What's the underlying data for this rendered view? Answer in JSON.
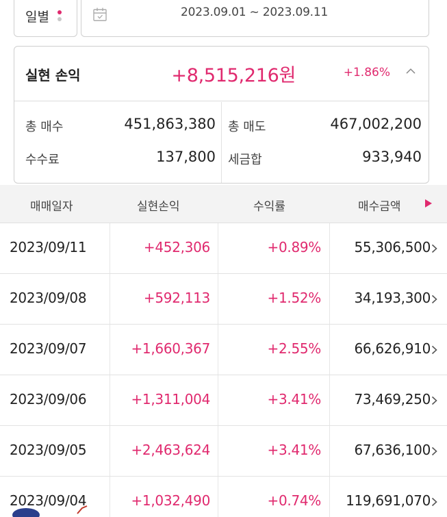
{
  "filter": {
    "period_label": "일별",
    "date_range": "2023.09.01 ~ 2023.09.11"
  },
  "summary": {
    "title": "실현 손익",
    "amount": "+8,515,216원",
    "rate": "+1.86%",
    "total_buy_label": "총 매수",
    "total_buy_value": "451,863,380",
    "total_sell_label": "총 매도",
    "total_sell_value": "467,002,200",
    "fee_label": "수수료",
    "fee_value": "137,800",
    "tax_label": "세금합",
    "tax_value": "933,940"
  },
  "table": {
    "headers": [
      "매매일자",
      "실현손익",
      "수익률",
      "매수금액"
    ],
    "rows": [
      {
        "date": "2023/09/11",
        "pnl": "+452,306",
        "rate": "+0.89%",
        "buy": "55,306,500"
      },
      {
        "date": "2023/09/08",
        "pnl": "+592,113",
        "rate": "+1.52%",
        "buy": "34,193,300"
      },
      {
        "date": "2023/09/07",
        "pnl": "+1,660,367",
        "rate": "+2.55%",
        "buy": "66,626,910"
      },
      {
        "date": "2023/09/06",
        "pnl": "+1,311,004",
        "rate": "+3.41%",
        "buy": "73,469,250"
      },
      {
        "date": "2023/09/05",
        "pnl": "+2,463,624",
        "rate": "+3.41%",
        "buy": "67,636,100"
      },
      {
        "date": "2023/09/04",
        "pnl": "+1,032,490",
        "rate": "+0.74%",
        "buy": "119,691,070"
      }
    ]
  },
  "colors": {
    "accent": "#e0296e",
    "text": "#222222",
    "header_bg": "#f3f3f3",
    "border": "#cfcfcf"
  },
  "icons": {
    "calendar": "calendar-icon",
    "chevron_up": "chevron-up-icon",
    "scroll_right": "triangle-right-icon",
    "row_more": "chevron-right-icon"
  }
}
